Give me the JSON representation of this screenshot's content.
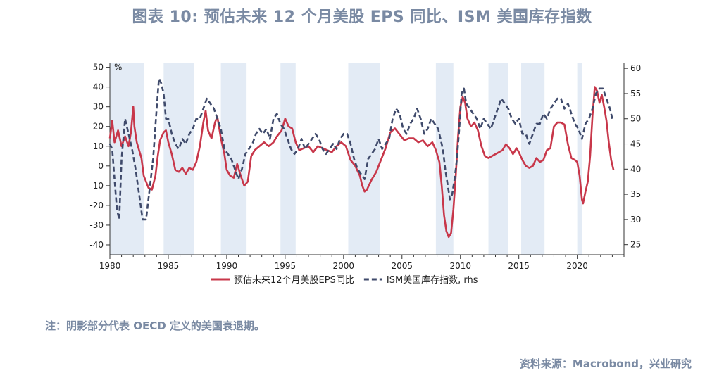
{
  "title": "图表 10: 预估未来 12 个月美股 EPS 同比、ISM 美国库存指数",
  "note": "注：阴影部分代表 OECD 定义的美国衰退期。",
  "source": "资料来源：Macrobond，兴业研究",
  "chart_data": {
    "type": "line",
    "y_left_unit": "%",
    "y_left_range": [
      -45,
      52
    ],
    "y_left_ticks": [
      -40,
      -30,
      -20,
      -10,
      0,
      10,
      20,
      30,
      40,
      50
    ],
    "y_right_range": [
      23,
      61
    ],
    "y_right_ticks": [
      25,
      30,
      35,
      40,
      45,
      50,
      55,
      60
    ],
    "x_range": [
      1980,
      2024
    ],
    "x_ticks": [
      1980,
      1985,
      1990,
      1995,
      2000,
      2005,
      2010,
      2015,
      2020
    ],
    "grid": false,
    "legend_position": "bottom",
    "recessions": [
      [
        1980.0,
        1982.9
      ],
      [
        1984.6,
        1987.2
      ],
      [
        1989.5,
        1991.7
      ],
      [
        1994.6,
        1995.9
      ],
      [
        2000.4,
        2003.1
      ],
      [
        2007.9,
        2009.4
      ],
      [
        2012.4,
        2014.1
      ],
      [
        2015.2,
        2017.2
      ],
      [
        2020.0,
        2020.4
      ]
    ],
    "series": [
      {
        "name": "预估未来12个月美股EPS同比",
        "axis": "left",
        "color": "#c8374a",
        "style": "solid",
        "points": [
          [
            1980.0,
            14
          ],
          [
            1980.2,
            23
          ],
          [
            1980.4,
            12
          ],
          [
            1980.7,
            18
          ],
          [
            1981.0,
            10
          ],
          [
            1981.3,
            15
          ],
          [
            1981.6,
            10
          ],
          [
            1981.8,
            17
          ],
          [
            1982.0,
            30
          ],
          [
            1982.1,
            20
          ],
          [
            1982.3,
            12
          ],
          [
            1982.5,
            8
          ],
          [
            1982.7,
            4
          ],
          [
            1982.9,
            -5
          ],
          [
            1983.1,
            -8
          ],
          [
            1983.3,
            -11
          ],
          [
            1983.6,
            -12
          ],
          [
            1983.9,
            -5
          ],
          [
            1984.1,
            5
          ],
          [
            1984.3,
            13
          ],
          [
            1984.6,
            17
          ],
          [
            1984.8,
            18
          ],
          [
            1985.0,
            12
          ],
          [
            1985.3,
            6
          ],
          [
            1985.6,
            -2
          ],
          [
            1985.9,
            -3
          ],
          [
            1986.2,
            -1
          ],
          [
            1986.5,
            -4
          ],
          [
            1986.8,
            -1
          ],
          [
            1987.1,
            -2
          ],
          [
            1987.4,
            2
          ],
          [
            1987.7,
            10
          ],
          [
            1988.0,
            22
          ],
          [
            1988.2,
            28
          ],
          [
            1988.4,
            18
          ],
          [
            1988.7,
            14
          ],
          [
            1989.0,
            22
          ],
          [
            1989.2,
            25
          ],
          [
            1989.5,
            14
          ],
          [
            1989.8,
            6
          ],
          [
            1990.0,
            -2
          ],
          [
            1990.3,
            -5
          ],
          [
            1990.6,
            -6
          ],
          [
            1990.9,
            1
          ],
          [
            1991.2,
            -5
          ],
          [
            1991.5,
            -10
          ],
          [
            1991.8,
            -8
          ],
          [
            1992.1,
            5
          ],
          [
            1992.4,
            8
          ],
          [
            1992.8,
            10
          ],
          [
            1993.2,
            12
          ],
          [
            1993.6,
            10
          ],
          [
            1994.0,
            12
          ],
          [
            1994.3,
            15
          ],
          [
            1994.7,
            18
          ],
          [
            1995.0,
            24
          ],
          [
            1995.3,
            20
          ],
          [
            1995.6,
            19
          ],
          [
            1995.9,
            12
          ],
          [
            1996.2,
            8
          ],
          [
            1996.6,
            9
          ],
          [
            1997.0,
            10
          ],
          [
            1997.4,
            7
          ],
          [
            1997.8,
            10
          ],
          [
            1998.2,
            9
          ],
          [
            1998.6,
            8
          ],
          [
            1999.0,
            7
          ],
          [
            1999.4,
            10
          ],
          [
            1999.8,
            12
          ],
          [
            2000.2,
            10
          ],
          [
            2000.6,
            3
          ],
          [
            2001.0,
            0
          ],
          [
            2001.4,
            -5
          ],
          [
            2001.6,
            -10
          ],
          [
            2001.8,
            -13
          ],
          [
            2002.0,
            -12
          ],
          [
            2002.4,
            -7
          ],
          [
            2002.8,
            -3
          ],
          [
            2003.2,
            3
          ],
          [
            2003.6,
            9
          ],
          [
            2004.0,
            17
          ],
          [
            2004.4,
            19
          ],
          [
            2004.8,
            16
          ],
          [
            2005.2,
            13
          ],
          [
            2005.6,
            14
          ],
          [
            2006.0,
            14
          ],
          [
            2006.4,
            12
          ],
          [
            2006.8,
            13
          ],
          [
            2007.2,
            10
          ],
          [
            2007.6,
            12
          ],
          [
            2007.9,
            8
          ],
          [
            2008.2,
            2
          ],
          [
            2008.4,
            -10
          ],
          [
            2008.6,
            -25
          ],
          [
            2008.8,
            -33
          ],
          [
            2009.0,
            -36
          ],
          [
            2009.2,
            -34
          ],
          [
            2009.4,
            -22
          ],
          [
            2009.6,
            -5
          ],
          [
            2009.8,
            15
          ],
          [
            2010.0,
            30
          ],
          [
            2010.2,
            35
          ],
          [
            2010.4,
            32
          ],
          [
            2010.6,
            24
          ],
          [
            2010.9,
            20
          ],
          [
            2011.2,
            22
          ],
          [
            2011.5,
            18
          ],
          [
            2011.8,
            10
          ],
          [
            2012.1,
            5
          ],
          [
            2012.4,
            4
          ],
          [
            2012.7,
            5
          ],
          [
            2013.0,
            6
          ],
          [
            2013.3,
            7
          ],
          [
            2013.6,
            8
          ],
          [
            2013.9,
            11
          ],
          [
            2014.2,
            9
          ],
          [
            2014.5,
            6
          ],
          [
            2014.8,
            9
          ],
          [
            2015.0,
            7
          ],
          [
            2015.3,
            3
          ],
          [
            2015.6,
            0
          ],
          [
            2015.9,
            -1
          ],
          [
            2016.2,
            0
          ],
          [
            2016.5,
            4
          ],
          [
            2016.8,
            2
          ],
          [
            2017.1,
            3
          ],
          [
            2017.4,
            8
          ],
          [
            2017.7,
            9
          ],
          [
            2018.0,
            20
          ],
          [
            2018.3,
            22
          ],
          [
            2018.6,
            22
          ],
          [
            2018.9,
            21
          ],
          [
            2019.2,
            11
          ],
          [
            2019.5,
            4
          ],
          [
            2019.8,
            3
          ],
          [
            2020.0,
            2
          ],
          [
            2020.2,
            -5
          ],
          [
            2020.4,
            -17
          ],
          [
            2020.5,
            -19
          ],
          [
            2020.7,
            -13
          ],
          [
            2020.9,
            -8
          ],
          [
            2021.1,
            5
          ],
          [
            2021.3,
            25
          ],
          [
            2021.5,
            40
          ],
          [
            2021.7,
            38
          ],
          [
            2021.9,
            32
          ],
          [
            2022.1,
            36
          ],
          [
            2022.3,
            30
          ],
          [
            2022.5,
            23
          ],
          [
            2022.7,
            12
          ],
          [
            2022.9,
            3
          ],
          [
            2023.1,
            -2
          ]
        ]
      },
      {
        "name": "ISM美国库存指数, rhs",
        "axis": "right",
        "color": "#3f4a6b",
        "style": "dashed",
        "points": [
          [
            1980.0,
            45
          ],
          [
            1980.2,
            44
          ],
          [
            1980.4,
            38
          ],
          [
            1980.6,
            32
          ],
          [
            1980.8,
            30
          ],
          [
            1981.0,
            42
          ],
          [
            1981.3,
            50
          ],
          [
            1981.6,
            47
          ],
          [
            1981.9,
            44
          ],
          [
            1982.2,
            40
          ],
          [
            1982.5,
            35
          ],
          [
            1982.8,
            30
          ],
          [
            1983.1,
            30
          ],
          [
            1983.4,
            36
          ],
          [
            1983.7,
            42
          ],
          [
            1984.0,
            52
          ],
          [
            1984.2,
            58
          ],
          [
            1984.4,
            57
          ],
          [
            1984.6,
            55
          ],
          [
            1984.8,
            50
          ],
          [
            1985.0,
            50
          ],
          [
            1985.3,
            47
          ],
          [
            1985.6,
            45
          ],
          [
            1985.9,
            44
          ],
          [
            1986.2,
            46
          ],
          [
            1986.5,
            45
          ],
          [
            1986.8,
            47
          ],
          [
            1987.1,
            48
          ],
          [
            1987.4,
            50
          ],
          [
            1987.7,
            50
          ],
          [
            1988.0,
            52
          ],
          [
            1988.3,
            54
          ],
          [
            1988.6,
            53
          ],
          [
            1988.9,
            52
          ],
          [
            1989.2,
            50
          ],
          [
            1989.5,
            48
          ],
          [
            1989.8,
            44
          ],
          [
            1990.1,
            43
          ],
          [
            1990.4,
            42
          ],
          [
            1990.7,
            40
          ],
          [
            1991.0,
            38
          ],
          [
            1991.3,
            40
          ],
          [
            1991.6,
            43
          ],
          [
            1991.9,
            44
          ],
          [
            1992.2,
            45
          ],
          [
            1992.5,
            47
          ],
          [
            1992.8,
            48
          ],
          [
            1993.1,
            47
          ],
          [
            1993.4,
            48
          ],
          [
            1993.7,
            46
          ],
          [
            1994.0,
            50
          ],
          [
            1994.3,
            51
          ],
          [
            1994.6,
            49
          ],
          [
            1994.9,
            48
          ],
          [
            1995.2,
            46
          ],
          [
            1995.5,
            44
          ],
          [
            1995.8,
            43
          ],
          [
            1996.1,
            44
          ],
          [
            1996.4,
            46
          ],
          [
            1996.7,
            44
          ],
          [
            1997.0,
            45
          ],
          [
            1997.3,
            46
          ],
          [
            1997.6,
            47
          ],
          [
            1997.9,
            46
          ],
          [
            1998.2,
            44
          ],
          [
            1998.5,
            43
          ],
          [
            1998.8,
            44
          ],
          [
            1999.1,
            45
          ],
          [
            1999.4,
            44
          ],
          [
            1999.7,
            46
          ],
          [
            2000.0,
            47
          ],
          [
            2000.3,
            47
          ],
          [
            2000.6,
            45
          ],
          [
            2000.9,
            42
          ],
          [
            2001.2,
            40
          ],
          [
            2001.5,
            39
          ],
          [
            2001.8,
            38
          ],
          [
            2002.1,
            42
          ],
          [
            2002.4,
            43
          ],
          [
            2002.7,
            44
          ],
          [
            2003.0,
            46
          ],
          [
            2003.3,
            44
          ],
          [
            2003.6,
            45
          ],
          [
            2003.9,
            46
          ],
          [
            2004.2,
            50
          ],
          [
            2004.5,
            52
          ],
          [
            2004.8,
            51
          ],
          [
            2005.1,
            48
          ],
          [
            2005.4,
            47
          ],
          [
            2005.7,
            49
          ],
          [
            2006.0,
            50
          ],
          [
            2006.3,
            52
          ],
          [
            2006.6,
            50
          ],
          [
            2006.9,
            47
          ],
          [
            2007.2,
            48
          ],
          [
            2007.5,
            50
          ],
          [
            2007.8,
            49
          ],
          [
            2008.1,
            48
          ],
          [
            2008.3,
            46
          ],
          [
            2008.5,
            44
          ],
          [
            2008.7,
            40
          ],
          [
            2008.9,
            37
          ],
          [
            2009.1,
            34
          ],
          [
            2009.3,
            35
          ],
          [
            2009.5,
            38
          ],
          [
            2009.7,
            42
          ],
          [
            2009.9,
            48
          ],
          [
            2010.1,
            55
          ],
          [
            2010.3,
            56
          ],
          [
            2010.5,
            53
          ],
          [
            2010.8,
            52
          ],
          [
            2011.1,
            51
          ],
          [
            2011.4,
            50
          ],
          [
            2011.7,
            48
          ],
          [
            2012.0,
            50
          ],
          [
            2012.3,
            49
          ],
          [
            2012.6,
            48
          ],
          [
            2012.9,
            50
          ],
          [
            2013.2,
            52
          ],
          [
            2013.5,
            54
          ],
          [
            2013.8,
            53
          ],
          [
            2014.1,
            52
          ],
          [
            2014.4,
            50
          ],
          [
            2014.7,
            49
          ],
          [
            2015.0,
            50
          ],
          [
            2015.3,
            47
          ],
          [
            2015.6,
            47
          ],
          [
            2015.9,
            45
          ],
          [
            2016.2,
            47
          ],
          [
            2016.5,
            49
          ],
          [
            2016.8,
            49
          ],
          [
            2017.1,
            51
          ],
          [
            2017.4,
            50
          ],
          [
            2017.7,
            52
          ],
          [
            2018.0,
            53
          ],
          [
            2018.3,
            54
          ],
          [
            2018.6,
            54
          ],
          [
            2018.9,
            52
          ],
          [
            2019.2,
            53
          ],
          [
            2019.5,
            51
          ],
          [
            2019.8,
            49
          ],
          [
            2020.1,
            48
          ],
          [
            2020.4,
            46
          ],
          [
            2020.7,
            49
          ],
          [
            2021.0,
            50
          ],
          [
            2021.3,
            52
          ],
          [
            2021.6,
            55
          ],
          [
            2021.9,
            56
          ],
          [
            2022.2,
            56
          ],
          [
            2022.5,
            54
          ],
          [
            2022.8,
            52
          ],
          [
            2023.0,
            50
          ]
        ]
      }
    ]
  }
}
